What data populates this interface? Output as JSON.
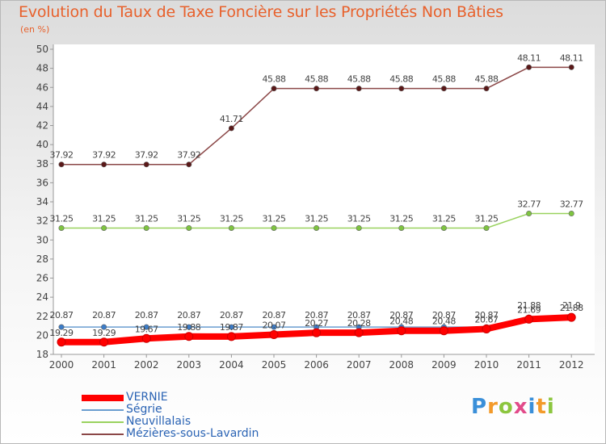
{
  "chart_data": {
    "type": "line",
    "title": "Evolution du Taux de Taxe Foncière sur les Propriétés Non Bâties",
    "subtitle": "(en %)",
    "x": [
      "2000",
      "2001",
      "2002",
      "2003",
      "2004",
      "2005",
      "2006",
      "2007",
      "2008",
      "2009",
      "2010",
      "2011",
      "2012"
    ],
    "ylim": [
      18,
      50
    ],
    "yticks": [
      18,
      20,
      22,
      24,
      26,
      28,
      30,
      32,
      34,
      36,
      38,
      40,
      42,
      44,
      46,
      48,
      50
    ],
    "grid": false,
    "legend_position": "bottom-left",
    "series": [
      {
        "name": "VERNIE",
        "color": "#ff0000",
        "values": [
          19.29,
          19.29,
          19.67,
          19.88,
          19.87,
          20.07,
          20.27,
          20.28,
          20.48,
          20.48,
          20.67,
          21.69,
          21.88
        ]
      },
      {
        "name": "Ségrie",
        "color": "#6a9ed0",
        "values": [
          20.87,
          20.87,
          20.87,
          20.87,
          20.87,
          20.87,
          20.87,
          20.87,
          20.87,
          20.87,
          20.87,
          21.88,
          21.9
        ]
      },
      {
        "name": "Neuvillalais",
        "color": "#99d25e",
        "values": [
          31.25,
          31.25,
          31.25,
          31.25,
          31.25,
          31.25,
          31.25,
          31.25,
          31.25,
          31.25,
          31.25,
          32.77,
          32.77
        ]
      },
      {
        "name": "Mézières-sous-Lavardin",
        "color": "#8b4747",
        "values": [
          37.92,
          37.92,
          37.92,
          37.92,
          41.71,
          45.88,
          45.88,
          45.88,
          45.88,
          45.88,
          45.88,
          48.11,
          48.11
        ]
      }
    ],
    "data_labels": {
      "VERNIE": [
        "19.29",
        "19.29",
        "19.67",
        "19.88",
        "19.87",
        "20.07",
        "20.27",
        "20.28",
        "20.48",
        "20.48",
        "20.67",
        "21.69",
        "21.88"
      ],
      "Ségrie": [
        "20.87",
        "20.87",
        "20.87",
        "20.87",
        "20.87",
        "20.87",
        "20.87",
        "20.87",
        "20.87",
        "20.87",
        "20.87",
        "21.88",
        "21.9"
      ],
      "Neuvillalais": [
        "31.25",
        "31.25",
        "31.25",
        "31.25",
        "31.25",
        "31.25",
        "31.25",
        "31.25",
        "31.25",
        "31.25",
        "31.25",
        "32.77",
        "32.77"
      ],
      "Mézières-sous-Lavardin": [
        "37.92",
        "37.92",
        "37.92",
        "37.92",
        "41.71",
        "45.88",
        "45.88",
        "45.88",
        "45.88",
        "45.88",
        "45.88",
        "48.11",
        "48.11"
      ]
    }
  },
  "logo_text": "Proxiti"
}
